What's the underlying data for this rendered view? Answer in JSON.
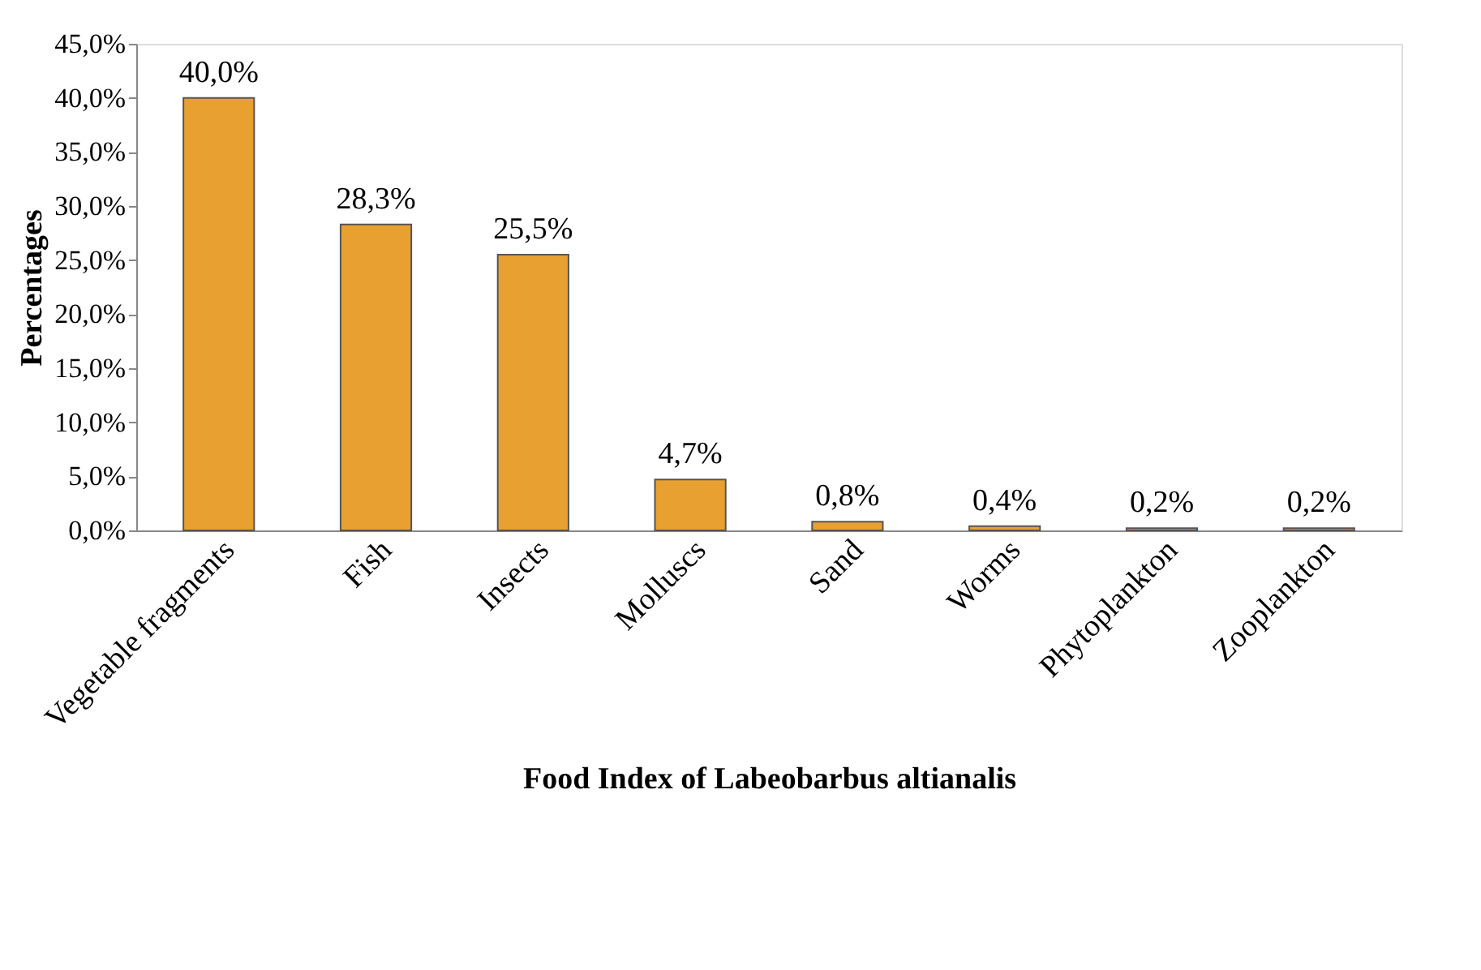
{
  "chart_data": {
    "type": "bar",
    "xlabel": "Food Index of Labeobarbus  altianalis",
    "ylabel": "Percentages",
    "categories": [
      "Vegetable fragments",
      "Fish",
      "Insects",
      "Molluscs",
      "Sand",
      "Worms",
      "Phytoplankton",
      "Zooplankton"
    ],
    "values": [
      40.0,
      28.3,
      25.5,
      4.7,
      0.8,
      0.4,
      0.2,
      0.2
    ],
    "value_labels": [
      "40,0%",
      "28,3%",
      "25,5%",
      "4,7%",
      "0,8%",
      "0,4%",
      "0,2%",
      "0,2%"
    ],
    "color": "#e8a030",
    "ylim": [
      0,
      45
    ],
    "yticks": [
      {
        "value": 0,
        "label": "0,0%"
      },
      {
        "value": 5,
        "label": "5,0%"
      },
      {
        "value": 10,
        "label": "10,0%"
      },
      {
        "value": 15,
        "label": "15,0%"
      },
      {
        "value": 20,
        "label": "20,0%"
      },
      {
        "value": 25,
        "label": "25,0%"
      },
      {
        "value": 30,
        "label": "30,0%"
      },
      {
        "value": 35,
        "label": "35,0%"
      },
      {
        "value": 40,
        "label": "40,0%"
      },
      {
        "value": 45,
        "label": "45,0%"
      }
    ],
    "grid": false
  }
}
